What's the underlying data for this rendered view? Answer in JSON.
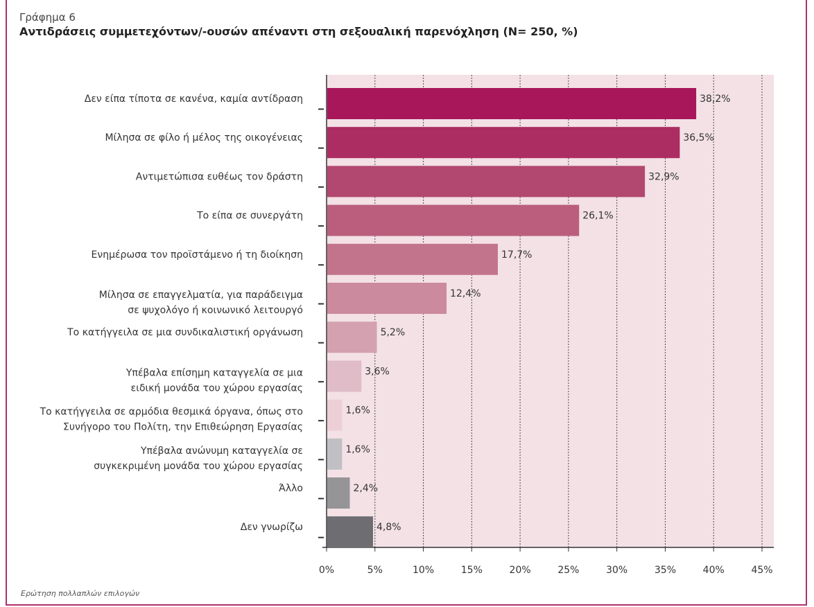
{
  "header": {
    "label": "Γράφημα 6",
    "title": "Αντιδράσεις συμμετεχόντων/-ουσών απέναντι στη σεξουαλική παρενόχληση (Ν= 250, %)"
  },
  "footnote": "Ερώτηση πολλαπλών επιλογών",
  "chart_data": {
    "type": "bar",
    "orientation": "horizontal",
    "title": "Αντιδράσεις συμμετεχόντων/-ουσών απέναντι στη σεξουαλική παρενόχληση (Ν= 250, %)",
    "xlim": [
      0,
      45
    ],
    "x_ticks": [
      "0%",
      "5%",
      "10%",
      "15%",
      "20%",
      "25%",
      "30%",
      "35%",
      "40%",
      "45%"
    ],
    "categories": [
      [
        "Δεν είπα τίποτα σε κανένα, καμία αντίδραση"
      ],
      [
        "Μίλησα σε φίλο ή μέλος της οικογένειας"
      ],
      [
        "Αντιμετώπισα ευθέως τον δράστη"
      ],
      [
        "Το είπα σε συνεργάτη"
      ],
      [
        "Ενημέρωσα τον προϊστάμενο ή τη διοίκηση"
      ],
      [
        "Μίλησα σε επαγγελματία, για παράδειγμα",
        "σε ψυχολόγο ή κοινωνικό λειτουργό"
      ],
      [
        "Το κατήγγειλα σε μια συνδικαλιστική οργάνωση"
      ],
      [
        "Υπέβαλα επίσημη καταγγελία σε μια",
        "ειδική μονάδα του χώρου εργασίας"
      ],
      [
        "Το κατήγγειλα σε αρμόδια θεσμικά όργανα, όπως στο",
        "Συνήγορο του Πολίτη, την Επιθεώρηση Εργασίας"
      ],
      [
        "Υπέβαλα ανώνυμη καταγγελία σε",
        "συγκεκριμένη μονάδα του χώρου εργασίας"
      ],
      [
        "Άλλο"
      ],
      [
        "Δεν γνωρίζω"
      ]
    ],
    "values": [
      38.2,
      36.5,
      32.9,
      26.1,
      17.7,
      12.4,
      5.2,
      3.6,
      1.6,
      1.6,
      2.4,
      4.8
    ],
    "value_labels": [
      "38,2%",
      "36,5%",
      "32,9%",
      "26,1%",
      "17,7%",
      "12,4%",
      "5,2%",
      "3,6%",
      "1,6%",
      "1,6%",
      "2,4%",
      "4,8%"
    ],
    "colors": [
      "#a8175a",
      "#ac2d62",
      "#b2476f",
      "#bb5e7e",
      "#c3748d",
      "#cb8a9e",
      "#d4a1b0",
      "#dfbcc7",
      "#eccfd7",
      "#c0c0c4",
      "#959597",
      "#6e6e72"
    ],
    "background_color": "#f3e1e6",
    "grid": true
  }
}
